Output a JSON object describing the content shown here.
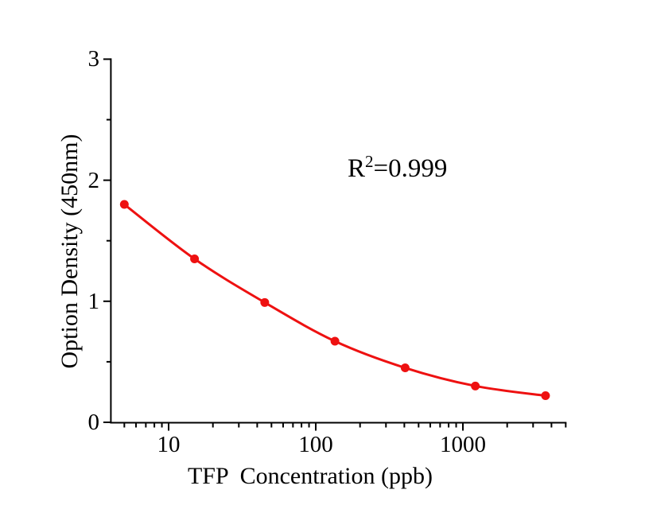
{
  "chart_data": {
    "type": "line",
    "series_name": "standard-curve",
    "x": [
      5,
      15,
      45,
      135,
      405,
      1215,
      3645
    ],
    "y": [
      1.8,
      1.35,
      0.99,
      0.67,
      0.45,
      0.3,
      0.22
    ],
    "xlabel": "TFP  Concentration（ppb）",
    "ylabel": "Option Density（450nm）",
    "x_scale": "log",
    "y_scale": "linear",
    "xlim": [
      4,
      5000
    ],
    "ylim": [
      0,
      3
    ],
    "x_major_ticks": [
      10,
      100,
      1000
    ],
    "x_tick_labels": [
      "10",
      "100",
      "1000"
    ],
    "y_major_ticks": [
      0,
      1,
      2,
      3
    ],
    "y_tick_labels": [
      "0",
      "1",
      "2",
      "3"
    ],
    "y_minor_step": 0.5,
    "grid": false,
    "legend": false,
    "marker_shape": "filled-circle",
    "line_color": "#ee1111",
    "marker_color": "#ee1111",
    "axis_color": "#000000",
    "background_color": "#ffffff",
    "annotation": {
      "text": "R²=0.999",
      "base": "R",
      "sup": "2",
      "rest": "=0.999"
    }
  }
}
